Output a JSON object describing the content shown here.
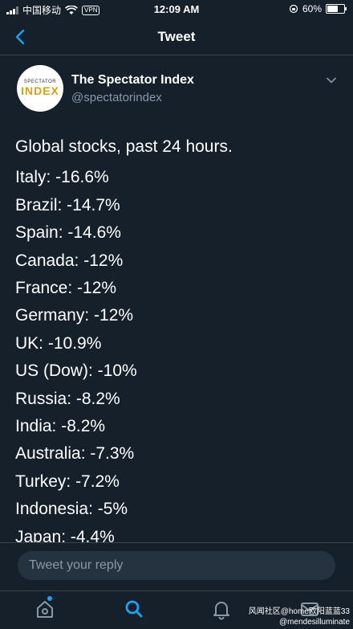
{
  "status_bar": {
    "carrier": "中国移动",
    "vpn": "VPN",
    "time": "12:09 AM",
    "battery": "60%",
    "battery_level": 0.6
  },
  "header": {
    "title": "Tweet"
  },
  "tweet": {
    "author_name": "The Spectator Index",
    "author_handle": "@spectatorindex",
    "avatar_top": "SPECTATOR",
    "avatar_bottom": "INDEX",
    "intro": "Global stocks, past 24 hours.",
    "lines": [
      "Italy: -16.6%",
      "Brazil: -14.7%",
      "Spain: -14.6%",
      "Canada: -12%",
      "France: -12%",
      "Germany: -12%",
      "UK: -10.9%",
      "US (Dow): -10%",
      "Russia: -8.2%",
      "India: -8.2%",
      "Australia: -7.3%",
      "Turkey: -7.2%",
      "Indonesia: -5%",
      "Japan: -4.4%"
    ]
  },
  "reply": {
    "placeholder": "Tweet your reply"
  },
  "tabs": [
    "home-icon",
    "search-icon",
    "notifications-icon",
    "messages-icon"
  ],
  "colors": {
    "background": "#15202b",
    "accent": "#1da1f2",
    "muted": "#8899a6"
  },
  "watermark": {
    "line1": "风闻社区@home欧阳蓝蓝33",
    "line2": "@mendesilluminate"
  }
}
